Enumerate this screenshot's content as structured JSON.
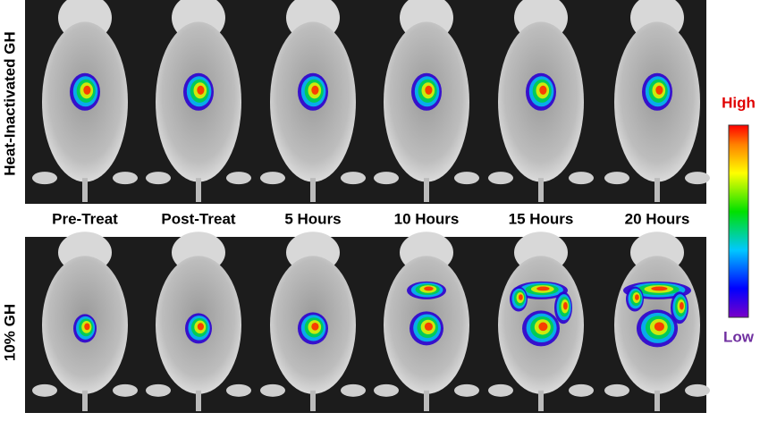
{
  "row_labels": [
    "Heat-Inactivated GH",
    "10% GH"
  ],
  "column_labels": [
    "Pre-Treat",
    "Post-Treat",
    "5 Hours",
    "10 Hours",
    "15 Hours",
    "20 Hours"
  ],
  "colorbar": {
    "high": "High",
    "low": "Low"
  }
}
